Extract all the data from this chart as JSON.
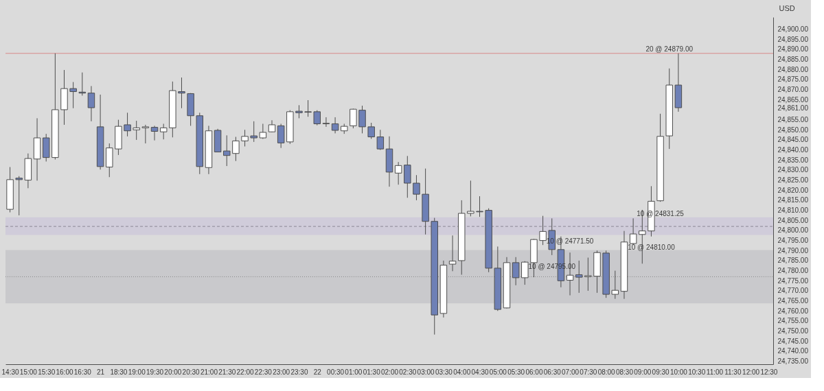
{
  "chart_data": {
    "type": "candlestick",
    "ylabel": "USD",
    "categories": [
      "14:30",
      null,
      "15:00",
      null,
      "15:30",
      null,
      "16:00",
      null,
      "16:30",
      null,
      "21",
      null,
      "18:30",
      null,
      "19:00",
      null,
      "19:30",
      null,
      "20:00",
      null,
      "20:30",
      null,
      "21:00",
      null,
      "21:30",
      null,
      "22:00",
      null,
      "22:30",
      null,
      "23:00",
      null,
      "23:30",
      null,
      "22",
      null,
      "00:30",
      null,
      "01:00",
      null,
      "01:30",
      null,
      "02:00",
      null,
      "02:30",
      null,
      "03:00",
      null,
      "03:30",
      null,
      "04:00",
      null,
      "04:30",
      null,
      "05:00",
      null,
      "05:30",
      null,
      "06:00",
      null,
      "06:30",
      null,
      "07:00",
      null,
      "07:30",
      null,
      "08:00",
      null,
      "08:30",
      null,
      "09:00",
      null,
      "09:30",
      null,
      "10:00",
      null,
      "10:30",
      null,
      "11:00",
      null,
      "11:30",
      null,
      "12:00",
      null,
      "12:30"
    ],
    "ohlc": [
      [
        24810.5,
        24831.5,
        24809,
        24825.25
      ],
      [
        24826,
        24827,
        24807.5,
        24825.25
      ],
      [
        24825,
        24838.25,
        24821,
        24835.75
      ],
      [
        24835.5,
        24855.75,
        24824.75,
        24846
      ],
      [
        24846,
        24848,
        24834.25,
        24836.25
      ],
      [
        24836.25,
        24888,
        24835.25,
        24860
      ],
      [
        24860,
        24879.75,
        24852.5,
        24870.5
      ],
      [
        24870.5,
        24873.75,
        24860.75,
        24869
      ],
      [
        24868.75,
        24878.5,
        24867,
        24868.25
      ],
      [
        24868.25,
        24871.75,
        24854.25,
        24861
      ],
      [
        24851.5,
        24867.5,
        24830.25,
        24831.75
      ],
      [
        24831.5,
        24843.25,
        24826.5,
        24841
      ],
      [
        24840.5,
        24855,
        24837.5,
        24851.75
      ],
      [
        24852.5,
        24858.5,
        24846.75,
        24849.5
      ],
      [
        24850,
        24854.5,
        24845,
        24851
      ],
      [
        24851,
        24852.5,
        24843.25,
        24851.5
      ],
      [
        24851.25,
        24852,
        24844.75,
        24849.25
      ],
      [
        24849,
        24853,
        24845.25,
        24851
      ],
      [
        24851,
        24874,
        24846.25,
        24869.5
      ],
      [
        24869,
        24876,
        24860.75,
        24868.25
      ],
      [
        24868,
        24868.25,
        24852,
        24857
      ],
      [
        24857,
        24858.5,
        24828,
        24831.75
      ],
      [
        24831.25,
        24852,
        24828,
        24849.5
      ],
      [
        24849.75,
        24850.5,
        24839,
        24839
      ],
      [
        24839.5,
        24847.25,
        24832,
        24837.25
      ],
      [
        24838.25,
        24846.5,
        24834.5,
        24844.5
      ],
      [
        24844.5,
        24850,
        24841.75,
        24846.75
      ],
      [
        24847,
        24854.25,
        24844,
        24846
      ],
      [
        24846,
        24853,
        24845.5,
        24848.75
      ],
      [
        24849,
        24854.75,
        24848.75,
        24852.5
      ],
      [
        24852,
        24853,
        24841,
        24843.5
      ],
      [
        24844,
        24859.75,
        24843,
        24859
      ],
      [
        24859.25,
        24862.25,
        24855.75,
        24858.5
      ],
      [
        24859,
        24864.75,
        24856.5,
        24858.75
      ],
      [
        24859,
        24859.75,
        24852.25,
        24853
      ],
      [
        24853,
        24856.25,
        24851.5,
        24853.25
      ],
      [
        24853,
        24856.25,
        24848.25,
        24849.75
      ],
      [
        24849.5,
        24853,
        24848,
        24851.75
      ],
      [
        24852,
        24860.5,
        24850.75,
        24860.25
      ],
      [
        24859.75,
        24862,
        24848.25,
        24851.5
      ],
      [
        24851.5,
        24853.5,
        24845.5,
        24846.5
      ],
      [
        24846.5,
        24850,
        24840,
        24840.5
      ],
      [
        24840.5,
        24846.75,
        24821.75,
        24829
      ],
      [
        24828.5,
        24834,
        24822.75,
        24832.25
      ],
      [
        24832.5,
        24837,
        24816.25,
        24823.5
      ],
      [
        24823.5,
        24827.5,
        24815,
        24818
      ],
      [
        24818,
        24830.75,
        24798,
        24804.5
      ],
      [
        24804.5,
        24806.25,
        24748.25,
        24758
      ],
      [
        24758.75,
        24785,
        24756.75,
        24782.75
      ],
      [
        24783.25,
        24797.5,
        24779.75,
        24784.75
      ],
      [
        24785,
        24815,
        24778,
        24808.5
      ],
      [
        24808.5,
        24824.75,
        24807,
        24809.5
      ],
      [
        24809.5,
        24817,
        24806.75,
        24809.25
      ],
      [
        24810,
        24811,
        24779.25,
        24781.25
      ],
      [
        24781.25,
        24792,
        24760,
        24760.75
      ],
      [
        24761.5,
        24786.75,
        24761.25,
        24784
      ],
      [
        24784,
        24786.75,
        24772.75,
        24776.5
      ],
      [
        24776.5,
        24784.75,
        24773,
        24784.25
      ],
      [
        24784,
        24795.75,
        24776.75,
        24795.5
      ],
      [
        24795,
        24807.25,
        24792.75,
        24799.5
      ],
      [
        24800,
        24806,
        24787.75,
        24790.5
      ],
      [
        24790.5,
        24797,
        24771.75,
        24775
      ],
      [
        24775.25,
        24789,
        24767.75,
        24777.75
      ],
      [
        24778,
        24785,
        24769,
        24776.75
      ],
      [
        24777,
        24786.5,
        24770,
        24777.5
      ],
      [
        24777.25,
        24790,
        24769,
        24789
      ],
      [
        24788.75,
        24790,
        24766.5,
        24768.25
      ],
      [
        24768.25,
        24780,
        24766,
        24770.25
      ],
      [
        24769.75,
        24799.75,
        24766,
        24794.25
      ],
      [
        24793.5,
        24806,
        24793,
        24798.25
      ],
      [
        24798,
        24810.25,
        24783.5,
        24799.75
      ],
      [
        24799.75,
        24822,
        24797,
        24814.5
      ],
      [
        24814.75,
        24858,
        24814.25,
        24846.75
      ],
      [
        24847,
        24880.5,
        24840.5,
        24872.25
      ],
      [
        24872.25,
        24888,
        24859,
        24861
      ],
      null,
      null,
      null,
      null,
      null,
      null,
      null,
      null,
      null,
      null
    ],
    "colors": [
      "#ffffff",
      "#6e80b6",
      "#ffffff",
      "#ffffff",
      "#6e80b6",
      "#ffffff",
      "#ffffff",
      "#6e80b6",
      "#6e80b6",
      "#6e80b6",
      "#6e80b6",
      "#ffffff",
      "#ffffff",
      "#6e80b6",
      "#ffffff",
      "#ffffff",
      "#6e80b6",
      "#ffffff",
      "#ffffff",
      "#6e80b6",
      "#6e80b6",
      "#6e80b6",
      "#ffffff",
      "#6e80b6",
      "#6e80b6",
      "#ffffff",
      "#ffffff",
      "#6e80b6",
      "#ffffff",
      "#ffffff",
      "#6e80b6",
      "#ffffff",
      "#6e80b6",
      "#6e80b6",
      "#6e80b6",
      "#ffffff",
      "#6e80b6",
      "#ffffff",
      "#ffffff",
      "#6e80b6",
      "#6e80b6",
      "#6e80b6",
      "#6e80b6",
      "#ffffff",
      "#6e80b6",
      "#6e80b6",
      "#6e80b6",
      "#6e80b6",
      "#ffffff",
      "#ffffff",
      "#ffffff",
      "#ffffff",
      "#6e80b6",
      "#6e80b6",
      "#6e80b6",
      "#ffffff",
      "#6e80b6",
      "#ffffff",
      "#ffffff",
      "#ffffff",
      "#6e80b6",
      "#6e80b6",
      "#ffffff",
      "#6e80b6",
      "#ffffff",
      "#ffffff",
      "#6e80b6",
      "#ffffff",
      "#ffffff",
      "#ffffff",
      "#ffffff",
      "#ffffff",
      "#ffffff",
      "#ffffff",
      "#6e80b6",
      null,
      null,
      null,
      null,
      null,
      null,
      null,
      null,
      null,
      null
    ],
    "ylim": [
      24733.5,
      24906
    ],
    "yticks": [
      {
        "value": 24735,
        "label": "24,735.00"
      },
      {
        "value": 24740,
        "label": "24,740.00"
      },
      {
        "value": 24745,
        "label": "24,745.00"
      },
      {
        "value": 24750,
        "label": "24,750.00"
      },
      {
        "value": 24755,
        "label": "24,755.00"
      },
      {
        "value": 24760,
        "label": "24,760.00"
      },
      {
        "value": 24765,
        "label": "24,765.00"
      },
      {
        "value": 24770,
        "label": "24,770.00"
      },
      {
        "value": 24775,
        "label": "24,775.00"
      },
      {
        "value": 24780,
        "label": "24,780.00"
      },
      {
        "value": 24785,
        "label": "24,785.00"
      },
      {
        "value": 24790,
        "label": "24,790.00"
      },
      {
        "value": 24795,
        "label": "24,795.00"
      },
      {
        "value": 24800,
        "label": "24,800.00"
      },
      {
        "value": 24805,
        "label": "24,805.00"
      },
      {
        "value": 24810,
        "label": "24,810.00"
      },
      {
        "value": 24815,
        "label": "24,815.00"
      },
      {
        "value": 24820,
        "label": "24,820.00"
      },
      {
        "value": 24825,
        "label": "24,825.00"
      },
      {
        "value": 24830,
        "label": "24,830.00"
      },
      {
        "value": 24835,
        "label": "24,835.00"
      },
      {
        "value": 24840,
        "label": "24,840.00"
      },
      {
        "value": 24845,
        "label": "24,845.00"
      },
      {
        "value": 24850,
        "label": "24,850.00"
      },
      {
        "value": 24855,
        "label": "24,855.00"
      },
      {
        "value": 24861,
        "label": "24,861.00"
      },
      {
        "value": 24865,
        "label": "24,865.00"
      },
      {
        "value": 24870,
        "label": "24,870.00"
      },
      {
        "value": 24875,
        "label": "24,875.00"
      },
      {
        "value": 24880,
        "label": "24,880.00"
      },
      {
        "value": 24885,
        "label": "24,885.00"
      },
      {
        "value": 24890,
        "label": "24,890.00"
      },
      {
        "value": 24895,
        "label": "24,895.00"
      },
      {
        "value": 24900,
        "label": "24,900.00"
      }
    ],
    "bands": [
      {
        "axis": "y",
        "from": 24763.75,
        "to": 24790.25,
        "color": "#c9c9cc"
      },
      {
        "axis": "y",
        "from": 24797.75,
        "to": 24806.5,
        "color": "#d0ccda"
      }
    ],
    "ref_lines": [
      {
        "axis": "y",
        "value": 24888,
        "color": "#d98b8b"
      },
      {
        "axis": "y",
        "value": 24802,
        "color": "#8a8796",
        "line_style": "dashed"
      },
      {
        "axis": "y",
        "value": 24777,
        "color": "#8a8a8a",
        "line_style": "dotted"
      }
    ],
    "annotations": [
      "10 @ 24795.00",
      "10 @ 24771.50",
      "10 @ 24810.00",
      "10 @ 24831.25",
      "20 @ 24879.00"
    ]
  }
}
